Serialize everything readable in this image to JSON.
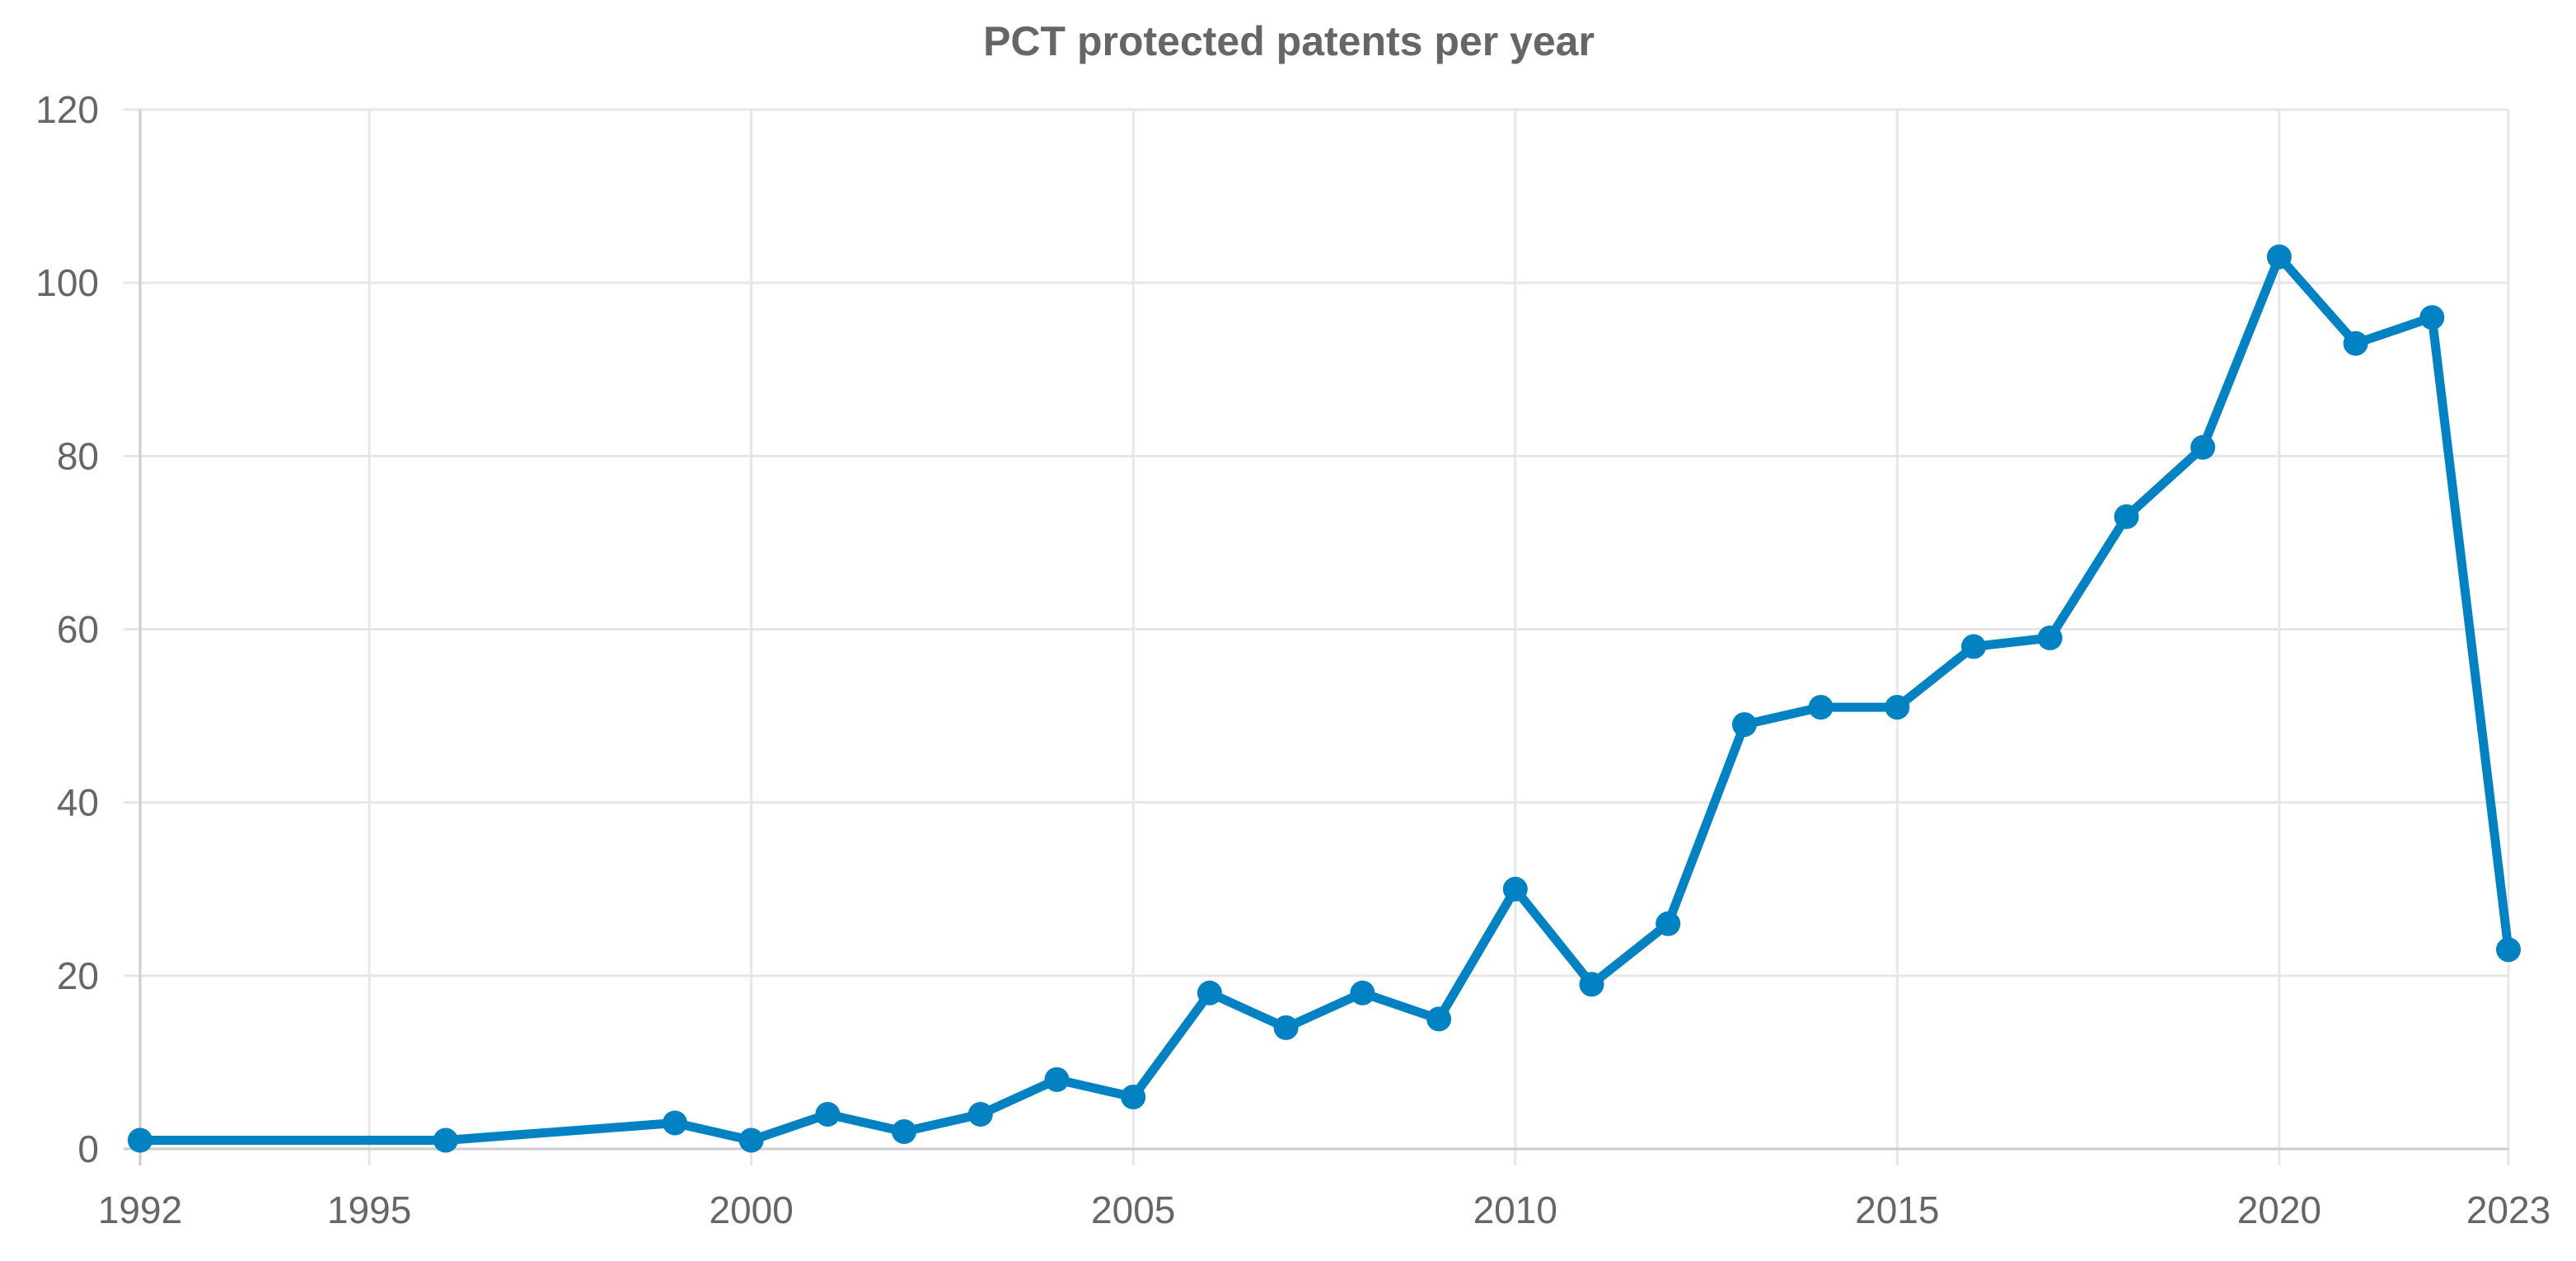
{
  "chart_data": {
    "type": "line",
    "title": "PCT protected patents per year",
    "xlabel": "",
    "ylabel": "",
    "xlim": [
      1992,
      2023
    ],
    "ylim": [
      0,
      120
    ],
    "x_ticks": [
      1992,
      1995,
      2000,
      2005,
      2010,
      2015,
      2020,
      2023
    ],
    "y_ticks": [
      0,
      20,
      40,
      60,
      80,
      100,
      120
    ],
    "grid": true,
    "legend": "none",
    "series": [
      {
        "name": "PCT protected patents",
        "color": "#0282c3",
        "x": [
          1992,
          1996,
          1999,
          2000,
          2001,
          2002,
          2003,
          2004,
          2005,
          2006,
          2007,
          2008,
          2009,
          2010,
          2011,
          2012,
          2013,
          2014,
          2015,
          2016,
          2017,
          2018,
          2019,
          2020,
          2021,
          2022,
          2023
        ],
        "values": [
          1,
          1,
          3,
          1,
          4,
          2,
          4,
          8,
          6,
          18,
          14,
          18,
          15,
          30,
          19,
          26,
          49,
          51,
          51,
          58,
          59,
          73,
          81,
          103,
          93,
          96,
          23
        ]
      }
    ]
  }
}
